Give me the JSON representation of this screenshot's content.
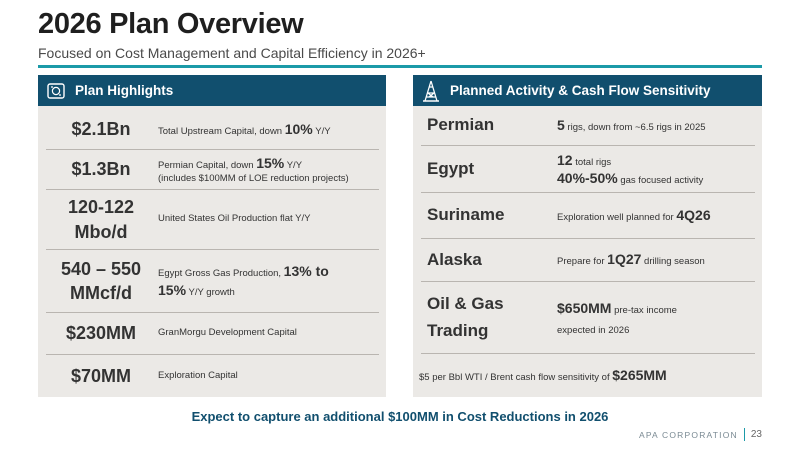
{
  "title": "2026 Plan Overview",
  "subtitle": "Focused on Cost Management and Capital Efficiency in 2026+",
  "left_panel": {
    "heading": "Plan Highlights",
    "icon": "money-icon",
    "rows": [
      {
        "value": "$2.1Bn",
        "pre": "Total Upstream Capital, down ",
        "em": "10%",
        "post": " Y/Y",
        "line2": ""
      },
      {
        "value": "$1.3Bn",
        "pre": "Permian Capital, down ",
        "em": "15%",
        "post": " Y/Y",
        "line2": "(includes $100MM of LOE reduction projects)"
      },
      {
        "value": "120-122 Mbo/d",
        "pre": "United States Oil Production flat Y/Y",
        "em": "",
        "post": "",
        "line2": ""
      },
      {
        "value": "540 – 550 MMcf/d",
        "pre": "Egypt Gross Gas Production, ",
        "em": "13% to",
        "post": "",
        "line2_em": "15%",
        "line2": " Y/Y growth"
      },
      {
        "value": "$230MM",
        "pre": "GranMorgu Development Capital",
        "em": "",
        "post": "",
        "line2": ""
      },
      {
        "value": "$70MM",
        "pre": "Exploration Capital",
        "em": "",
        "post": "",
        "line2": ""
      }
    ]
  },
  "right_panel": {
    "heading": "Planned Activity & Cash Flow Sensitivity",
    "icon": "oil-rig-icon",
    "rows": [
      {
        "name": "Permian",
        "em": "5",
        "desc": " rigs, down from ~6.5 rigs in 2025"
      },
      {
        "name": "Egypt",
        "em": "12",
        "desc": " total rigs",
        "em2": "40%-50%",
        "desc2": " gas focused activity"
      },
      {
        "name": "Suriname",
        "desc": "Exploration well planned for ",
        "em_after": "4Q26"
      },
      {
        "name": "Alaska",
        "desc": "Prepare for ",
        "em_after": "1Q27",
        "desc_after": " drilling season"
      },
      {
        "name": "Oil & Gas Trading",
        "em": "$650MM",
        "desc": " pre-tax income",
        "desc2": "expected in 2026"
      }
    ],
    "sensitivity_text": "$5 per Bbl WTI / Brent cash flow sensitivity of ",
    "sensitivity_value": "$265MM"
  },
  "callout": "Expect to capture an additional $100MM in Cost Reductions in 2026",
  "footer": {
    "company": "APA CORPORATION",
    "page": "23"
  },
  "colors": {
    "header_navy": "#114f6e",
    "accent_teal": "#1b9aa8",
    "panel_bg": "#ebe9e6"
  }
}
